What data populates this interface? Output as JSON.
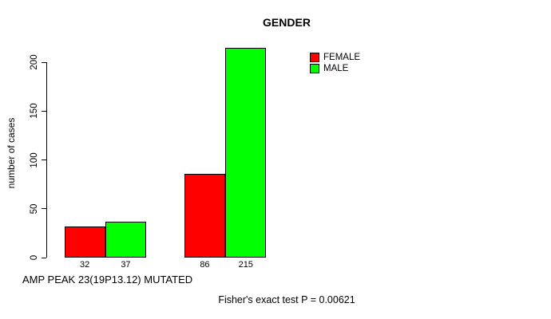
{
  "chart_data": {
    "type": "bar",
    "title": "GENDER",
    "ylabel": "number of cases",
    "xlabel": "AMP PEAK 23(19P13.12) MUTATED",
    "footnote": "Fisher's exact test P = 0.00621",
    "categories": [
      "",
      ""
    ],
    "series": [
      {
        "name": "FEMALE",
        "color": "#ff0000",
        "values": [
          32,
          86
        ]
      },
      {
        "name": "MALE",
        "color": "#00ff00",
        "values": [
          37,
          215
        ]
      }
    ],
    "bar_value_labels": [
      "32",
      "37",
      "86",
      "215"
    ],
    "yticks": [
      0,
      50,
      100,
      150,
      200
    ],
    "ylim": [
      0,
      215
    ],
    "grid": false,
    "legend_position": "top-right"
  }
}
